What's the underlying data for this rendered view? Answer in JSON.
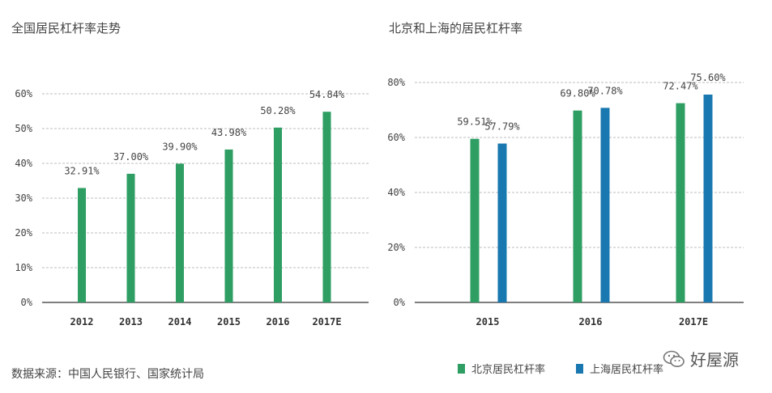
{
  "colors": {
    "green": "#2e9e63",
    "blue": "#1a78b0",
    "grid": "#bdbdbd",
    "axis": "#555555",
    "text": "#444444"
  },
  "chart_data": [
    {
      "type": "bar",
      "title": "全国居民杠杆率走势",
      "categories": [
        "2012",
        "2013",
        "2014",
        "2015",
        "2016",
        "2017E"
      ],
      "series": [
        {
          "values": [
            32.91,
            37.0,
            39.9,
            43.98,
            50.28,
            54.84
          ],
          "labels": [
            "32.91%",
            "37.00%",
            "39.90%",
            "43.98%",
            "50.28%",
            "54.84%"
          ]
        }
      ],
      "ylim": [
        0,
        60
      ],
      "yticks": [
        "0%",
        "10%",
        "20%",
        "30%",
        "40%",
        "50%",
        "60%"
      ],
      "grid": true
    },
    {
      "type": "bar",
      "title": "北京和上海的居民杠杆率",
      "categories": [
        "2015",
        "2016",
        "2017E"
      ],
      "series": [
        {
          "name": "北京居民杠杆率",
          "values": [
            59.51,
            69.8,
            72.47
          ],
          "labels": [
            "59.51%",
            "69.80%",
            "72.47%"
          ]
        },
        {
          "name": "上海居民杠杆率",
          "values": [
            57.79,
            70.78,
            75.6
          ],
          "labels": [
            "57.79%",
            "70.78%",
            "75.60%"
          ]
        }
      ],
      "ylim": [
        0,
        80
      ],
      "yticks": [
        "0%",
        "20%",
        "40%",
        "60%",
        "80%"
      ],
      "grid": true,
      "legend": "bottom"
    }
  ],
  "source_text": "数据来源：中国人民银行、国家统计局",
  "watermark": "好屋源"
}
